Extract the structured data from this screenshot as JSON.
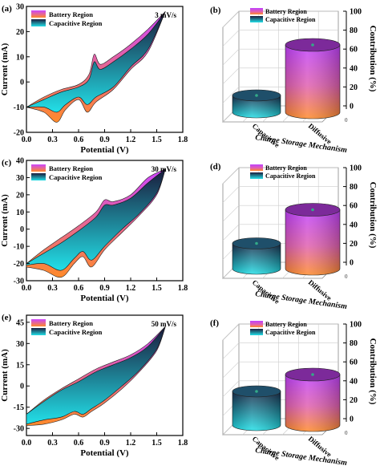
{
  "colors": {
    "battery_top": "#cc44ff",
    "battery_bottom": "#ff8a2a",
    "capacitive_top": "#1a1a3a",
    "capacitive_bottom": "#22e0e8",
    "cylinder_cap_blue": "#1f4f6a",
    "cylinder_cap_purple": "#7c2a9a"
  },
  "chart_data": [
    {
      "panel": "(a)",
      "type": "area",
      "scan_rate": "3 mV/s",
      "xlabel": "Potential (V)",
      "ylabel": "Current (mA)",
      "xlim": [
        0.0,
        1.8
      ],
      "ylim": [
        -20,
        30
      ],
      "xticks": [
        "0.0",
        "0.3",
        "0.6",
        "0.9",
        "1.2",
        "1.5",
        "1.8"
      ],
      "yticks": [
        "-20",
        "-10",
        "0",
        "10",
        "20",
        "30"
      ],
      "legend": [
        "Battery Region",
        "Capacitive Region"
      ],
      "series": [
        {
          "name": "Battery Region",
          "upper": [
            [
              0.0,
              -10
            ],
            [
              0.2,
              -6
            ],
            [
              0.4,
              -3
            ],
            [
              0.6,
              -1
            ],
            [
              0.72,
              3
            ],
            [
              0.78,
              11
            ],
            [
              0.85,
              7
            ],
            [
              1.0,
              10
            ],
            [
              1.2,
              15
            ],
            [
              1.4,
              21
            ],
            [
              1.6,
              28
            ]
          ],
          "lower": [
            [
              0.0,
              -10
            ],
            [
              0.2,
              -12
            ],
            [
              0.35,
              -16
            ],
            [
              0.45,
              -11
            ],
            [
              0.6,
              -7
            ],
            [
              0.7,
              -12
            ],
            [
              0.8,
              -8
            ],
            [
              1.0,
              -3
            ],
            [
              1.2,
              5
            ],
            [
              1.4,
              12
            ],
            [
              1.6,
              28
            ]
          ]
        },
        {
          "name": "Capacitive Region",
          "upper": [
            [
              0.0,
              -10
            ],
            [
              0.2,
              -7
            ],
            [
              0.4,
              -4
            ],
            [
              0.6,
              -2
            ],
            [
              0.72,
              1
            ],
            [
              0.78,
              8
            ],
            [
              0.85,
              5
            ],
            [
              1.0,
              8
            ],
            [
              1.2,
              13
            ],
            [
              1.4,
              19
            ],
            [
              1.6,
              28
            ]
          ],
          "lower": [
            [
              0.0,
              -10
            ],
            [
              0.2,
              -10
            ],
            [
              0.35,
              -12
            ],
            [
              0.45,
              -9
            ],
            [
              0.6,
              -6
            ],
            [
              0.7,
              -9
            ],
            [
              0.8,
              -6
            ],
            [
              1.0,
              -2
            ],
            [
              1.2,
              6
            ],
            [
              1.4,
              13
            ],
            [
              1.6,
              28
            ]
          ]
        }
      ]
    },
    {
      "panel": "(b)",
      "type": "bar",
      "xlabel": "Charge Storage Mechanism",
      "ylabel": "Contribution (%)",
      "categories": [
        "Capacitive",
        "Diffusive"
      ],
      "values": [
        20,
        80
      ],
      "ylim": [
        0,
        100
      ],
      "yticks": [
        "0",
        "20",
        "40",
        "60",
        "80",
        "100"
      ],
      "legend": [
        "Battery Region",
        "Capacitive Region"
      ]
    },
    {
      "panel": "(c)",
      "type": "area",
      "scan_rate": "30 mV/s",
      "xlabel": "Potential (V)",
      "ylabel": "Current (mA)",
      "xlim": [
        0.0,
        1.8
      ],
      "ylim": [
        -30,
        40
      ],
      "xticks": [
        "0.0",
        "0.3",
        "0.6",
        "0.9",
        "1.2",
        "1.5",
        "1.8"
      ],
      "yticks": [
        "-30",
        "-20",
        "-10",
        "0",
        "10",
        "20",
        "30",
        "40"
      ],
      "legend": [
        "Battery Region",
        "Capacitive Region"
      ],
      "series": [
        {
          "name": "Battery Region",
          "upper": [
            [
              0.0,
              -20
            ],
            [
              0.2,
              -12
            ],
            [
              0.4,
              -5
            ],
            [
              0.6,
              2
            ],
            [
              0.8,
              10
            ],
            [
              0.9,
              17
            ],
            [
              1.0,
              16
            ],
            [
              1.2,
              20
            ],
            [
              1.4,
              30
            ],
            [
              1.6,
              35
            ]
          ],
          "lower": [
            [
              0.0,
              -22
            ],
            [
              0.2,
              -24
            ],
            [
              0.4,
              -28
            ],
            [
              0.55,
              -20
            ],
            [
              0.65,
              -16
            ],
            [
              0.75,
              -22
            ],
            [
              0.9,
              -12
            ],
            [
              1.1,
              -2
            ],
            [
              1.3,
              8
            ],
            [
              1.5,
              20
            ],
            [
              1.6,
              35
            ]
          ]
        },
        {
          "name": "Capacitive Region",
          "upper": [
            [
              0.0,
              -20
            ],
            [
              0.2,
              -14
            ],
            [
              0.4,
              -8
            ],
            [
              0.6,
              -1
            ],
            [
              0.8,
              7
            ],
            [
              0.9,
              14
            ],
            [
              1.0,
              14
            ],
            [
              1.2,
              18
            ],
            [
              1.4,
              27
            ],
            [
              1.6,
              35
            ]
          ],
          "lower": [
            [
              0.0,
              -21
            ],
            [
              0.2,
              -20
            ],
            [
              0.4,
              -24
            ],
            [
              0.55,
              -17
            ],
            [
              0.65,
              -13
            ],
            [
              0.75,
              -18
            ],
            [
              0.9,
              -10
            ],
            [
              1.1,
              0
            ],
            [
              1.3,
              9
            ],
            [
              1.5,
              21
            ],
            [
              1.6,
              35
            ]
          ]
        }
      ]
    },
    {
      "panel": "(d)",
      "type": "bar",
      "xlabel": "Charge Storage Mechanism",
      "ylabel": "Contribution (%)",
      "categories": [
        "Capacitive",
        "Diffusive"
      ],
      "values": [
        30,
        70
      ],
      "ylim": [
        0,
        100
      ],
      "yticks": [
        "0",
        "20",
        "40",
        "60",
        "80",
        "100"
      ],
      "legend": [
        "Battery Region",
        "Capacitive Region"
      ]
    },
    {
      "panel": "(e)",
      "type": "area",
      "scan_rate": "50 mV/s",
      "xlabel": "Potential (V)",
      "ylabel": "Current (mA)",
      "xlim": [
        0.0,
        1.8
      ],
      "ylim": [
        -35,
        50
      ],
      "xticks": [
        "0.0",
        "0.3",
        "0.6",
        "0.9",
        "1.2",
        "1.5",
        "1.8"
      ],
      "yticks": [
        "-30",
        "-15",
        "0",
        "15",
        "30",
        "45"
      ],
      "legend": [
        "Battery Region",
        "Capacitive Region"
      ],
      "series": [
        {
          "name": "Battery Region",
          "upper": [
            [
              0.0,
              -20
            ],
            [
              0.2,
              -10
            ],
            [
              0.4,
              -2
            ],
            [
              0.6,
              5
            ],
            [
              0.8,
              12
            ],
            [
              1.0,
              17
            ],
            [
              1.2,
              22
            ],
            [
              1.4,
              30
            ],
            [
              1.6,
              42
            ]
          ],
          "lower": [
            [
              0.0,
              -28
            ],
            [
              0.2,
              -27
            ],
            [
              0.4,
              -24
            ],
            [
              0.55,
              -20
            ],
            [
              0.65,
              -22
            ],
            [
              0.75,
              -18
            ],
            [
              0.9,
              -12
            ],
            [
              1.1,
              -2
            ],
            [
              1.3,
              10
            ],
            [
              1.5,
              25
            ],
            [
              1.6,
              42
            ]
          ]
        },
        {
          "name": "Capacitive Region",
          "upper": [
            [
              0.0,
              -20
            ],
            [
              0.2,
              -11
            ],
            [
              0.4,
              -3
            ],
            [
              0.6,
              3
            ],
            [
              0.8,
              10
            ],
            [
              1.0,
              15
            ],
            [
              1.2,
              20
            ],
            [
              1.4,
              28
            ],
            [
              1.6,
              42
            ]
          ],
          "lower": [
            [
              0.0,
              -27
            ],
            [
              0.2,
              -24
            ],
            [
              0.4,
              -22
            ],
            [
              0.55,
              -18
            ],
            [
              0.65,
              -20
            ],
            [
              0.75,
              -16
            ],
            [
              0.9,
              -10
            ],
            [
              1.1,
              0
            ],
            [
              1.3,
              11
            ],
            [
              1.5,
              26
            ],
            [
              1.6,
              42
            ]
          ]
        }
      ]
    },
    {
      "panel": "(f)",
      "type": "bar",
      "xlabel": "Charge Storage Mechanism",
      "ylabel": "Contribution (%)",
      "categories": [
        "Capacitive",
        "Diffusive"
      ],
      "values": [
        40,
        60
      ],
      "ylim": [
        0,
        100
      ],
      "yticks": [
        "0",
        "20",
        "40",
        "60",
        "80",
        "100"
      ],
      "legend": [
        "Battery Region",
        "Capacitive Region"
      ]
    }
  ]
}
